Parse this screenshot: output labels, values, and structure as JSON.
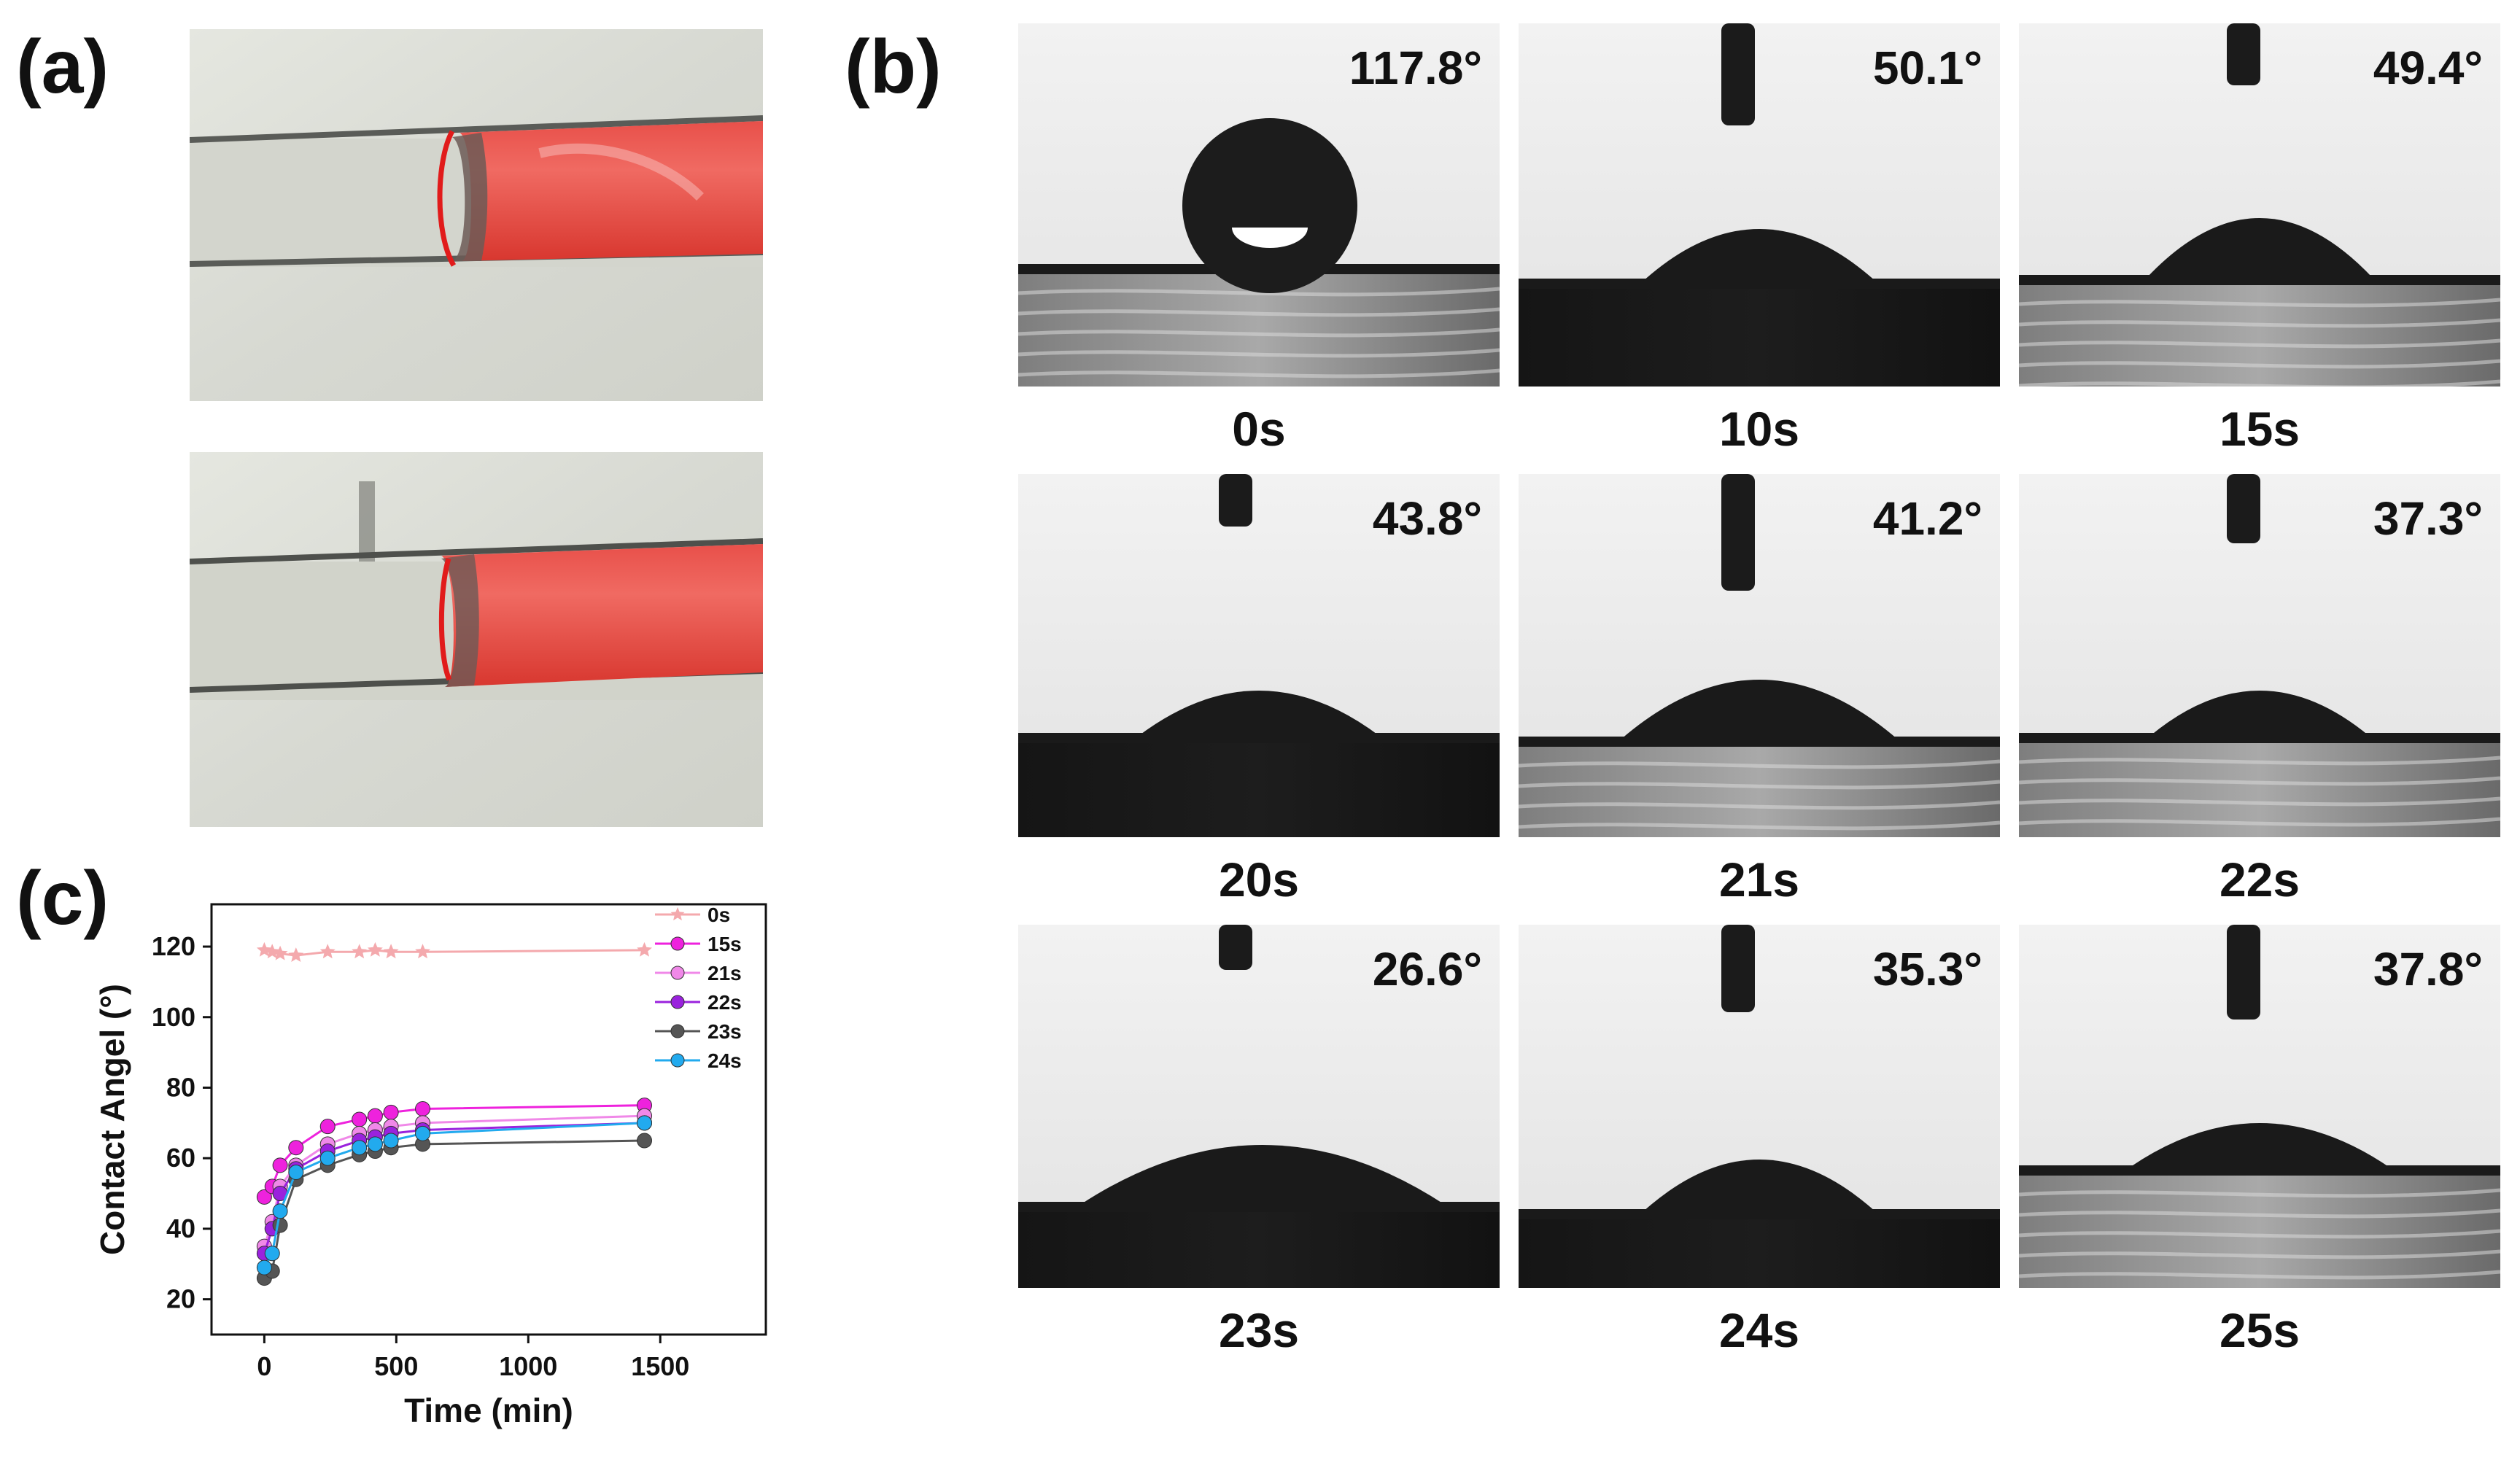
{
  "panels": {
    "a_label": "(a)",
    "b_label": "(b)",
    "c_label": "(c)"
  },
  "droplets": [
    {
      "time": "0s",
      "angle": "117.8°",
      "substrate": "gray"
    },
    {
      "time": "10s",
      "angle": "50.1°",
      "substrate": "black"
    },
    {
      "time": "15s",
      "angle": "49.4°",
      "substrate": "gray"
    },
    {
      "time": "20s",
      "angle": "43.8°",
      "substrate": "black"
    },
    {
      "time": "21s",
      "angle": "41.2°",
      "substrate": "gray"
    },
    {
      "time": "22s",
      "angle": "37.3°",
      "substrate": "gray"
    },
    {
      "time": "23s",
      "angle": "26.6°",
      "substrate": "black"
    },
    {
      "time": "24s",
      "angle": "35.3°",
      "substrate": "black"
    },
    {
      "time": "25s",
      "angle": "37.8°",
      "substrate": "gray"
    }
  ],
  "chart_data": {
    "type": "line",
    "title": "",
    "xlabel": "Time (min)",
    "ylabel": "Contact Angel (°)",
    "xlim": [
      -200,
      1900
    ],
    "ylim": [
      10,
      132
    ],
    "xticks": [
      0,
      500,
      1000,
      1500
    ],
    "yticks": [
      20,
      40,
      60,
      80,
      100,
      120
    ],
    "legend_position": "top-right",
    "series": [
      {
        "name": "0s",
        "color": "#f4a9ad",
        "marker": "star",
        "x": [
          0,
          30,
          60,
          120,
          240,
          360,
          420,
          480,
          600,
          1440
        ],
        "y": [
          119,
          118.5,
          118,
          117.5,
          118.5,
          118.5,
          119,
          118.5,
          118.5,
          119
        ]
      },
      {
        "name": "15s",
        "color": "#ee22dd",
        "marker": "circle",
        "x": [
          0,
          30,
          60,
          120,
          240,
          360,
          420,
          480,
          600,
          1440
        ],
        "y": [
          49,
          52,
          58,
          63,
          69,
          71,
          72,
          73,
          74,
          75
        ]
      },
      {
        "name": "21s",
        "color": "#f088e8",
        "marker": "circle",
        "x": [
          0,
          30,
          60,
          120,
          240,
          360,
          420,
          480,
          600,
          1440
        ],
        "y": [
          35,
          42,
          52,
          58,
          64,
          67,
          68,
          69,
          70,
          72
        ]
      },
      {
        "name": "22s",
        "color": "#9a22dd",
        "marker": "circle",
        "x": [
          0,
          30,
          60,
          120,
          240,
          360,
          420,
          480,
          600,
          1440
        ],
        "y": [
          33,
          40,
          50,
          57,
          62,
          65,
          66,
          67,
          68,
          70
        ]
      },
      {
        "name": "23s",
        "color": "#555555",
        "marker": "circle",
        "x": [
          0,
          30,
          60,
          120,
          240,
          360,
          420,
          480,
          600,
          1440
        ],
        "y": [
          26,
          28,
          41,
          54,
          58,
          61,
          62,
          63,
          64,
          65
        ]
      },
      {
        "name": "24s",
        "color": "#22aaee",
        "marker": "circle",
        "x": [
          0,
          30,
          60,
          120,
          240,
          360,
          420,
          480,
          600,
          1440
        ],
        "y": [
          29,
          33,
          45,
          56,
          60,
          63,
          64,
          65,
          67,
          70
        ]
      }
    ]
  }
}
